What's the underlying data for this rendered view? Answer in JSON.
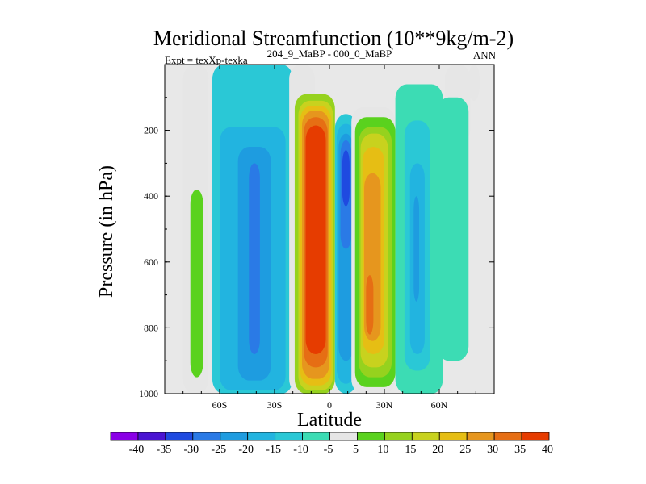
{
  "chart_data": {
    "type": "heatmap",
    "subtype": "filled-contour",
    "title": "Meridional Streamfunction (10**9kg/m-2)",
    "left_label": "Expt = texXp-texka",
    "center_label": "204_9_MaBP - 000_0_MaBP",
    "right_label": "ANN",
    "xlabel": "Latitude",
    "ylabel": "Pressure (in hPa)",
    "xlim": [
      -90,
      90
    ],
    "ylim": [
      1000,
      0
    ],
    "x_ticks": [
      {
        "value": -60,
        "label": "60S"
      },
      {
        "value": -30,
        "label": "30S"
      },
      {
        "value": 0,
        "label": "0"
      },
      {
        "value": 30,
        "label": "30N"
      },
      {
        "value": 60,
        "label": "60N"
      }
    ],
    "y_ticks": [
      {
        "value": 200,
        "label": "200"
      },
      {
        "value": 400,
        "label": "400"
      },
      {
        "value": 600,
        "label": "600"
      },
      {
        "value": 800,
        "label": "800"
      },
      {
        "value": 1000,
        "label": "1000"
      }
    ],
    "background_color": "#e8e8e8",
    "colorbar": {
      "levels": [
        "-40",
        "-35",
        "-30",
        "-25",
        "-20",
        "-15",
        "-10",
        "-5",
        "5",
        "10",
        "15",
        "20",
        "25",
        "30",
        "35",
        "40"
      ],
      "colors": [
        "#8a00e6",
        "#4a14d2",
        "#1f4ae0",
        "#2a7ae6",
        "#1e9ce0",
        "#22b4e0",
        "#2ac8d6",
        "#3cdcb4",
        "#e6e6e6",
        "#5ad21e",
        "#96d21e",
        "#c8d21e",
        "#e6be14",
        "#e6961e",
        "#e66e14",
        "#e63c00"
      ]
    },
    "regions": [
      {
        "name": "nh-polar-cell",
        "lat": [
          76,
          82
        ],
        "p": [
          0,
          110
        ],
        "value": 5
      },
      {
        "name": "nh-high-lat-strip",
        "lat": [
          63,
          77
        ],
        "p": [
          0,
          240
        ],
        "value": 5
      },
      {
        "name": "sh-polar-cell",
        "lat": [
          -80,
          -66
        ],
        "p": [
          0,
          1000
        ],
        "value": 5
      },
      {
        "name": "sh-polar-band",
        "lat": [
          -76,
          -69
        ],
        "p": [
          380,
          950
        ],
        "value": 10
      },
      {
        "name": "sh-ferrel-cell",
        "lat": [
          -64,
          -20
        ],
        "p": [
          0,
          1000
        ],
        "value": -10
      },
      {
        "name": "sh-ferrel-core",
        "lat": [
          -60,
          -24
        ],
        "p": [
          190,
          990
        ],
        "value": -15
      },
      {
        "name": "sh-ferrel-inner",
        "lat": [
          -50,
          -32
        ],
        "p": [
          250,
          960
        ],
        "value": -20
      },
      {
        "name": "sh-ferrel-max",
        "lat": [
          -44,
          -38
        ],
        "p": [
          300,
          880
        ],
        "value": -25
      },
      {
        "name": "sh-hadley-edge",
        "lat": [
          -22,
          -8
        ],
        "p": [
          0,
          1000
        ],
        "value": 5
      },
      {
        "name": "sh-hadley-cell",
        "lat": [
          -19,
          3
        ],
        "p": [
          90,
          1000
        ],
        "value": 15
      },
      {
        "name": "sh-hadley-c1",
        "lat": [
          -17,
          2
        ],
        "p": [
          110,
          990
        ],
        "value": 20
      },
      {
        "name": "sh-hadley-c2",
        "lat": [
          -16,
          1
        ],
        "p": [
          125,
          975
        ],
        "value": 25
      },
      {
        "name": "sh-hadley-c3",
        "lat": [
          -15,
          0
        ],
        "p": [
          140,
          955
        ],
        "value": 30
      },
      {
        "name": "sh-hadley-c4",
        "lat": [
          -14,
          -1
        ],
        "p": [
          160,
          920
        ],
        "value": 35
      },
      {
        "name": "sh-hadley-max",
        "lat": [
          -13,
          -2
        ],
        "p": [
          185,
          880
        ],
        "value": 40
      },
      {
        "name": "nh-hadley-cell",
        "lat": [
          3,
          15
        ],
        "p": [
          150,
          1000
        ],
        "value": -10
      },
      {
        "name": "nh-hadley-c1",
        "lat": [
          4,
          14
        ],
        "p": [
          180,
          970
        ],
        "value": -15
      },
      {
        "name": "nh-hadley-c2",
        "lat": [
          5,
          13
        ],
        "p": [
          210,
          900
        ],
        "value": -20
      },
      {
        "name": "nh-hadley-max",
        "lat": [
          6,
          12
        ],
        "p": [
          230,
          560
        ],
        "value": -25
      },
      {
        "name": "nh-hadley-core",
        "lat": [
          7,
          11
        ],
        "p": [
          260,
          430
        ],
        "value": -30
      },
      {
        "name": "nh-ferrel-edge",
        "lat": [
          12,
          36
        ],
        "p": [
          130,
          1000
        ],
        "value": 5
      },
      {
        "name": "nh-ferrel-cell",
        "lat": [
          14,
          36
        ],
        "p": [
          160,
          980
        ],
        "value": 10
      },
      {
        "name": "nh-ferrel-c1",
        "lat": [
          16,
          34
        ],
        "p": [
          190,
          950
        ],
        "value": 15
      },
      {
        "name": "nh-ferrel-c2",
        "lat": [
          17,
          32
        ],
        "p": [
          210,
          920
        ],
        "value": 20
      },
      {
        "name": "nh-ferrel-c3",
        "lat": [
          18,
          30
        ],
        "p": [
          250,
          880
        ],
        "value": 25
      },
      {
        "name": "nh-ferrel-max",
        "lat": [
          19,
          28
        ],
        "p": [
          330,
          840
        ],
        "value": 30
      },
      {
        "name": "nh-ferrel-core",
        "lat": [
          20,
          24
        ],
        "p": [
          640,
          820
        ],
        "value": 35
      },
      {
        "name": "nh-midlat-cell",
        "lat": [
          36,
          62
        ],
        "p": [
          60,
          1000
        ],
        "value": -5
      },
      {
        "name": "nh-midlat-core",
        "lat": [
          41,
          55
        ],
        "p": [
          170,
          930
        ],
        "value": -10
      },
      {
        "name": "nh-midlat-inner",
        "lat": [
          44,
          52
        ],
        "p": [
          300,
          880
        ],
        "value": -15
      },
      {
        "name": "nh-midlat-max",
        "lat": [
          46,
          49
        ],
        "p": [
          400,
          720
        ],
        "value": -20
      },
      {
        "name": "nh-polar-outer",
        "lat": [
          59,
          76
        ],
        "p": [
          100,
          900
        ],
        "value": -5
      }
    ]
  }
}
